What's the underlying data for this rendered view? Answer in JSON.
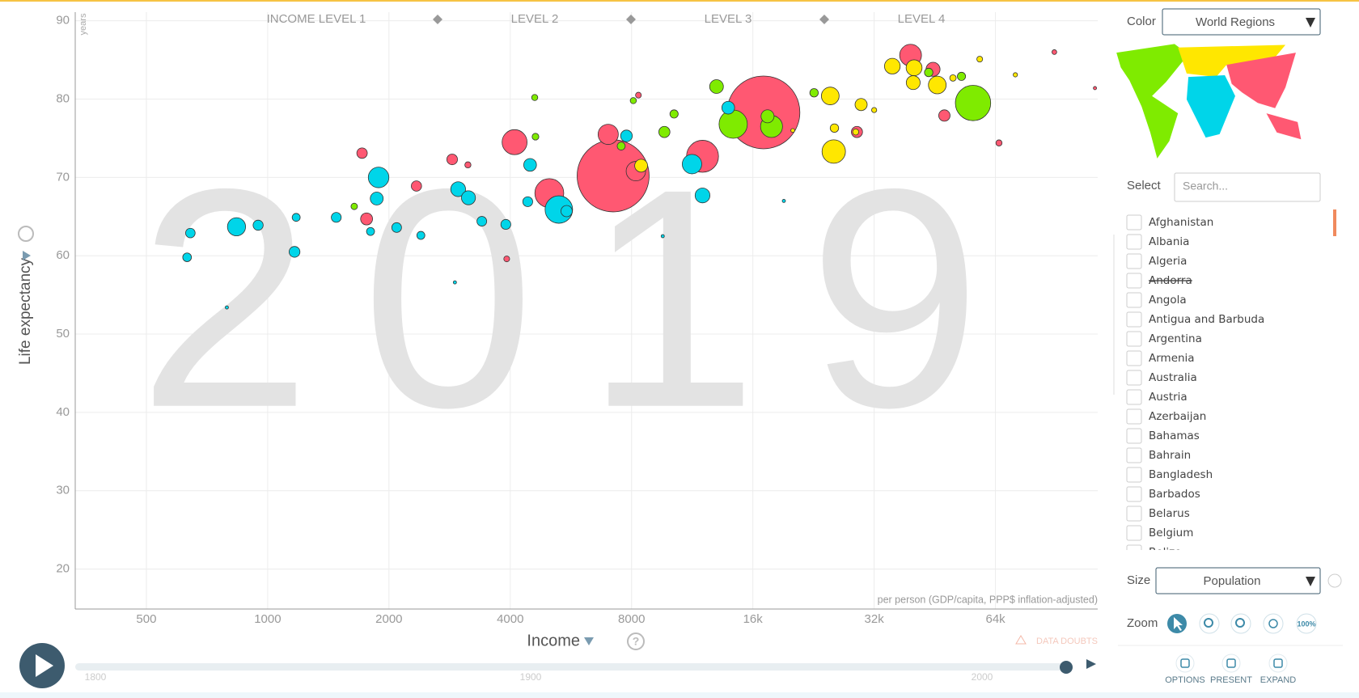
{
  "chart_data": {
    "type": "scatter",
    "x_label": "Income",
    "y_label": "Life expectancy",
    "y_unit": "years",
    "x_note": "per person (GDP/capita, PPP$ inflation-adjusted)",
    "watermark": "2019",
    "income_levels": [
      "INCOME LEVEL 1",
      "LEVEL 2",
      "LEVEL 3",
      "LEVEL 4"
    ],
    "xlog": true,
    "grid": true,
    "xlim": [
      333,
      114800
    ],
    "ylim": [
      14.9,
      91.1
    ],
    "xticks": [
      500,
      1000,
      2000,
      4000,
      8000,
      {
        "value": 16000,
        "label": "16k"
      },
      {
        "value": 32000,
        "label": "32k"
      },
      {
        "value": 64000,
        "label": "64k"
      }
    ],
    "yticks": [
      20,
      30,
      40,
      50,
      60,
      70,
      80,
      90
    ],
    "series": [
      {
        "color": "#ff5872",
        "x": [
          17000,
          7200,
          12000,
          5000,
          4100,
          7000,
          8200,
          39400,
          1760,
          1715,
          47800,
          89600,
          3920,
          2870,
          29000,
          65300,
          2340,
          113000,
          3140,
          8320,
          44800
        ],
        "values": [
          78.3,
          70.2,
          72.7,
          68.0,
          74.5,
          75.5,
          70.8,
          85.6,
          64.7,
          73.1,
          77.9,
          86.0,
          59.6,
          72.3,
          75.8,
          74.4,
          68.9,
          81.4,
          71.6,
          80.5,
          83.8
        ],
        "sizes": [
          1400,
          1370,
          270,
          220,
          165,
          108,
          100,
          126,
          38,
          29,
          34,
          6,
          9,
          30,
          33,
          10,
          28,
          2.5,
          10,
          9,
          52
        ]
      },
      {
        "color": "#00d5e9",
        "x": [
          5280,
          1885,
          11300,
          837,
          2970,
          12000,
          3150,
          1865,
          4480,
          13900,
          947,
          1166,
          643,
          631,
          792,
          2915,
          3900,
          4420,
          9560,
          19100,
          1480,
          2090,
          2400,
          3400,
          1177,
          1800,
          5520,
          7770
        ],
        "values": [
          65.9,
          70.0,
          71.7,
          63.7,
          68.5,
          67.7,
          67.4,
          67.3,
          71.6,
          78.9,
          63.9,
          60.5,
          62.9,
          59.8,
          53.4,
          56.6,
          64.0,
          66.9,
          62.5,
          67.0,
          64.9,
          63.6,
          62.6,
          64.4,
          64.9,
          63.1,
          65.7,
          75.3
        ],
        "sizes": [
          200,
          112,
          100,
          87,
          58,
          58,
          52,
          44,
          43,
          43,
          27,
          31,
          24,
          20,
          2,
          1.5,
          26,
          26,
          2,
          1.3,
          26,
          25,
          17,
          25,
          17,
          17,
          34,
          36
        ]
      },
      {
        "color": "#7feb00",
        "x": [
          56300,
          14300,
          17800,
          13000,
          17400,
          9650,
          4620,
          1640,
          4600,
          7540,
          10200,
          8080,
          22700,
          43700,
          52700
        ],
        "values": [
          79.5,
          76.8,
          76.5,
          81.6,
          77.8,
          75.8,
          75.2,
          66.3,
          80.2,
          74.0,
          78.1,
          79.8,
          80.8,
          83.4,
          82.9
        ],
        "sizes": [
          330,
          212,
          128,
          50,
          45,
          33,
          12,
          11,
          10,
          17,
          18,
          10,
          19,
          19,
          18
        ]
      },
      {
        "color": "#ffe700",
        "x": [
          25400,
          45900,
          40200,
          35500,
          24900,
          40000,
          8450,
          29700,
          28800,
          58500,
          71700,
          25500,
          50200,
          20100,
          32000
        ],
        "values": [
          73.3,
          81.8,
          84.0,
          84.2,
          80.4,
          82.1,
          71.5,
          79.3,
          75.8,
          85.1,
          83.1,
          76.3,
          82.7,
          76.0,
          78.6
        ],
        "sizes": [
          145,
          83,
          67,
          65,
          83,
          51,
          44,
          39,
          10,
          9,
          5,
          19,
          11,
          4,
          7
        ]
      }
    ]
  },
  "ui": {
    "color_label": "Color",
    "color_choice": "World Regions",
    "select_label": "Select",
    "search_placeholder": "Search...",
    "countries": [
      {
        "name": "Afghanistan",
        "available": true
      },
      {
        "name": "Albania",
        "available": true
      },
      {
        "name": "Algeria",
        "available": true
      },
      {
        "name": "Andorra",
        "available": false
      },
      {
        "name": "Angola",
        "available": true
      },
      {
        "name": "Antigua and Barbuda",
        "available": true
      },
      {
        "name": "Argentina",
        "available": true
      },
      {
        "name": "Armenia",
        "available": true
      },
      {
        "name": "Australia",
        "available": true
      },
      {
        "name": "Austria",
        "available": true
      },
      {
        "name": "Azerbaijan",
        "available": true
      },
      {
        "name": "Bahamas",
        "available": true
      },
      {
        "name": "Bahrain",
        "available": true
      },
      {
        "name": "Bangladesh",
        "available": true
      },
      {
        "name": "Barbados",
        "available": true
      },
      {
        "name": "Belarus",
        "available": true
      },
      {
        "name": "Belgium",
        "available": true
      },
      {
        "name": "Belize",
        "available": true
      }
    ],
    "size_label": "Size",
    "size_choice": "Population",
    "zoom_label": "Zoom",
    "zoom_reset": "100%",
    "help": "?",
    "data_doubts": "DATA DOUBTS",
    "timeline_labels": [
      "1800",
      "1900",
      "2000"
    ],
    "buttons": [
      "OPTIONS",
      "PRESENT",
      "EXPAND"
    ]
  }
}
